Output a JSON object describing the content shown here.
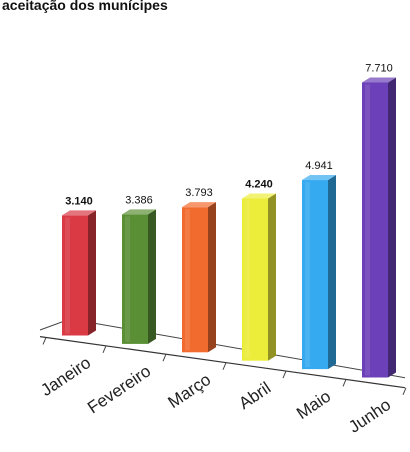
{
  "chart_data": {
    "type": "bar",
    "title": "aceitação dos munícipes",
    "categories": [
      "Janeiro",
      "Fevereiro",
      "Março",
      "Abril",
      "Maio",
      "Junho"
    ],
    "values": [
      3140,
      3386,
      3793,
      4240,
      4941,
      7710
    ],
    "value_labels": [
      "3.140",
      "3.386",
      "3.793",
      "4.240",
      "4.941",
      "7.710"
    ],
    "bold_labels": [
      true,
      false,
      false,
      true,
      false,
      false
    ],
    "colors": [
      "#d93a44",
      "#5a8f35",
      "#f26b2e",
      "#ecec3a",
      "#36aaf0",
      "#6b40b8"
    ],
    "ylim": [
      0,
      7710
    ],
    "grid": false,
    "legend": false,
    "style": "3d-bar"
  }
}
